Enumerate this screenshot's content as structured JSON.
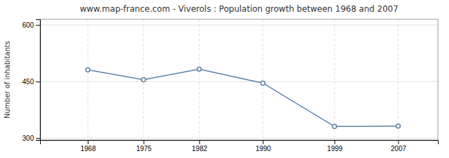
{
  "chart_data": {
    "type": "line",
    "title": "www.map-france.com - Viverols : Population growth between 1968 and 2007",
    "x": [
      1968,
      1975,
      1982,
      1990,
      1999,
      2007
    ],
    "values": [
      481,
      455,
      483,
      446,
      331,
      332
    ],
    "ylabel": "Number of inhabitants",
    "xlim": [
      1962,
      2012
    ],
    "xticks": [
      1968,
      1975,
      1982,
      1990,
      1999,
      2007
    ],
    "ylim": [
      295,
      615
    ],
    "yticks": [
      300,
      450,
      600
    ],
    "color": "#5b7fa6",
    "marker": "circle",
    "grid": true
  }
}
